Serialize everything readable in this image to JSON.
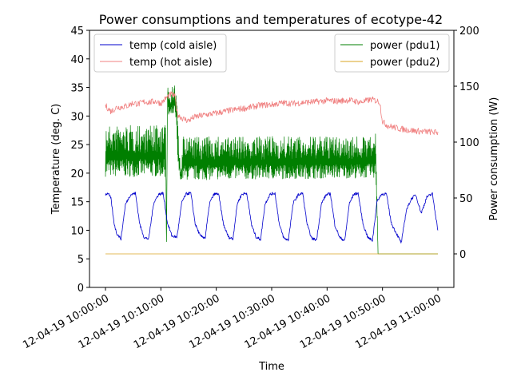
{
  "chart_data": {
    "type": "line",
    "title": "Power consumptions and temperatures of ecotype-42",
    "xlabel": "Time",
    "ylabel_left": "Temperature (deg. C)",
    "ylabel_right": "Power consumption (W)",
    "x_minutes_range": [
      0,
      60
    ],
    "x_ticks": [
      {
        "minute": 0,
        "label": "12-04-19 10:00:00"
      },
      {
        "minute": 10,
        "label": "12-04-19 10:10:00"
      },
      {
        "minute": 20,
        "label": "12-04-19 10:20:00"
      },
      {
        "minute": 30,
        "label": "12-04-19 10:30:00"
      },
      {
        "minute": 40,
        "label": "12-04-19 10:40:00"
      },
      {
        "minute": 50,
        "label": "12-04-19 10:50:00"
      },
      {
        "minute": 60,
        "label": "12-04-19 11:00:00"
      }
    ],
    "ylim_left": [
      0,
      45
    ],
    "yticks_left": [
      "0",
      "5",
      "10",
      "15",
      "20",
      "25",
      "30",
      "35",
      "40",
      "45"
    ],
    "ylim_right": [
      -30,
      200
    ],
    "yticks_right": [
      "0",
      "50",
      "100",
      "150",
      "200"
    ],
    "legend_left": {
      "placement": "top-left",
      "entries": [
        {
          "name": "temp (cold aisle)",
          "color": "#0000cc"
        },
        {
          "name": "temp (hot aisle)",
          "color": "#f08080"
        }
      ]
    },
    "legend_right": {
      "placement": "top-right",
      "entries": [
        {
          "name": "power (pdu1)",
          "color": "#007f00"
        },
        {
          "name": "power (pdu2)",
          "color": "#daa520"
        }
      ]
    },
    "series": [
      {
        "name": "temp (cold aisle)",
        "axis": "left",
        "color": "#0000cc",
        "x": [
          0,
          0.5,
          1,
          1.5,
          2,
          2.8,
          3.6,
          4.5,
          5.4,
          6.2,
          7,
          7.8,
          8.7,
          9.6,
          10.4,
          11.2,
          12,
          12.9,
          13.8,
          14.6,
          15.4,
          16.2,
          17.1,
          18,
          18.8,
          19.6,
          20.4,
          21.3,
          22.2,
          23,
          23.8,
          24.6,
          25.5,
          26.4,
          27.2,
          28,
          28.8,
          29.7,
          30.6,
          31.4,
          32.2,
          33,
          33.9,
          34.8,
          35.6,
          36.4,
          37.2,
          38.1,
          39,
          39.8,
          40.6,
          41.4,
          42.3,
          43.2,
          44,
          44.8,
          45.6,
          46.5,
          47.4,
          48.2,
          49,
          49.8,
          50.7,
          51.6,
          52.5,
          53.4,
          54.3,
          55.2,
          56,
          57,
          58,
          59,
          60
        ],
        "y": [
          16.3,
          16.5,
          15.5,
          11.5,
          9.5,
          8.5,
          14.5,
          16.2,
          16.5,
          11,
          8.7,
          8.5,
          14.8,
          16.3,
          16.5,
          11.2,
          9,
          8.8,
          15,
          16.4,
          16.5,
          11.1,
          9,
          8.7,
          14.8,
          16.3,
          16.4,
          11,
          8.8,
          8.5,
          14.7,
          16.3,
          16.5,
          10.8,
          8.8,
          8.4,
          14.6,
          16.3,
          16.5,
          10.9,
          8.6,
          8.3,
          14.8,
          16.2,
          16.5,
          11,
          8.6,
          8.3,
          14.7,
          16.2,
          16.4,
          10.9,
          8.7,
          8.2,
          14.6,
          16.3,
          16.5,
          11,
          8.7,
          8.2,
          15,
          16.3,
          16.4,
          11.2,
          9.5,
          7.8,
          13.5,
          15.5,
          16.2,
          13,
          15.8,
          16.4,
          10
        ]
      },
      {
        "name": "temp (hot aisle)",
        "axis": "left",
        "color": "#f08080",
        "x": [
          0,
          1,
          2,
          3,
          4,
          5,
          6,
          7,
          8,
          9,
          10,
          11,
          11.8,
          12.5,
          13,
          14,
          15,
          16,
          18,
          20,
          22,
          24,
          26,
          28,
          30,
          32,
          34,
          36,
          38,
          40,
          42,
          44,
          46,
          48,
          49.5,
          50,
          51,
          53,
          55,
          57,
          59,
          60
        ],
        "y": [
          31.8,
          30.8,
          31.5,
          31.6,
          31.8,
          32.3,
          32.1,
          32.5,
          32.4,
          32.6,
          32.2,
          33.2,
          33.8,
          33.5,
          30.3,
          29.5,
          29.2,
          29.8,
          30.2,
          30.5,
          30.9,
          31.2,
          31.5,
          31.9,
          32,
          32.3,
          32.2,
          32.4,
          32.5,
          32.7,
          32.6,
          32.8,
          32.4,
          32.9,
          32.5,
          29,
          28.3,
          27.8,
          27.5,
          27.3,
          27.2,
          27.1
        ]
      },
      {
        "name": "power (pdu1)",
        "axis": "right",
        "color": "#007f00",
        "x": [
          0,
          10.9,
          11,
          11.2,
          11.4,
          12.5,
          12.8,
          13.1,
          13.6,
          14,
          48.5,
          48.8,
          49.2,
          60
        ],
        "y": [
          70,
          70,
          0,
          160,
          140,
          148,
          145,
          105,
          68,
          98,
          98,
          112,
          0,
          0
        ],
        "band_top": [
          115,
          115,
          0,
          160,
          148,
          152,
          150,
          115,
          70,
          105,
          105,
          112,
          0,
          0
        ],
        "band_bottom": [
          69,
          69,
          0,
          140,
          120,
          125,
          110,
          75,
          66,
          66,
          68,
          68,
          0,
          0
        ]
      },
      {
        "name": "power (pdu2)",
        "axis": "right",
        "color": "#daa520",
        "x": [
          0,
          60
        ],
        "y": [
          0,
          0
        ]
      }
    ]
  }
}
